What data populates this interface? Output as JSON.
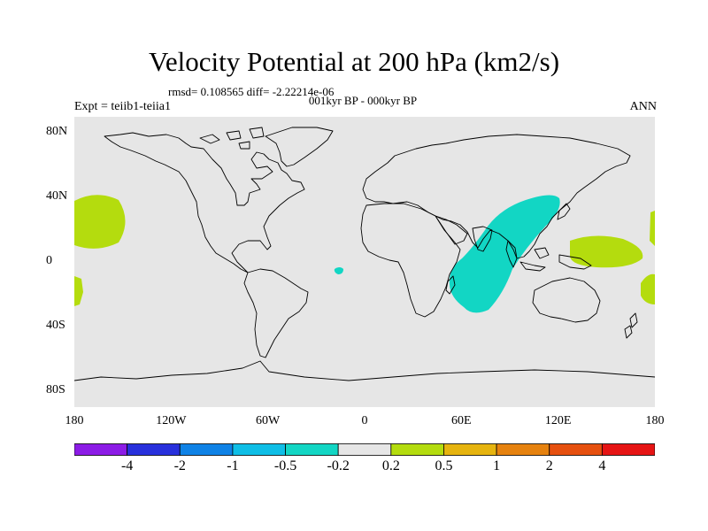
{
  "header": {
    "title": "Velocity Potential at 200 hPa (km2/s)",
    "stats": "rmsd= 0.108565 diff= -2.22214e-06",
    "period": "001kyr BP - 000kyr BP",
    "experiment": "Expt = teiib1-teiia1",
    "season": "ANN"
  },
  "map": {
    "projection": "cylindrical equidistant",
    "lon_range": [
      -180,
      180
    ],
    "lat_range": [
      -90,
      90
    ],
    "background_color": "#e6e6e6",
    "coastline_color": "#000000",
    "x_ticks": [
      {
        "lon": -180,
        "label": "180"
      },
      {
        "lon": -120,
        "label": "120W"
      },
      {
        "lon": -60,
        "label": "60W"
      },
      {
        "lon": 0,
        "label": "0"
      },
      {
        "lon": 60,
        "label": "60E"
      },
      {
        "lon": 120,
        "label": "120E"
      },
      {
        "lon": 180,
        "label": "180"
      }
    ],
    "y_ticks": [
      {
        "lat": 80,
        "label": "80N"
      },
      {
        "lat": 40,
        "label": "40N"
      },
      {
        "lat": 0,
        "label": "0"
      },
      {
        "lat": -40,
        "label": "40S"
      },
      {
        "lat": -80,
        "label": "80S"
      }
    ],
    "anomaly_regions": [
      {
        "name": "indian-ocean-negative",
        "range": "-0.5 to -0.2",
        "color": "#12d6c4"
      },
      {
        "name": "atlantic-small-negative",
        "range": "-0.5 to -0.2",
        "color": "#12d6c4"
      },
      {
        "name": "west-pacific-positive",
        "range": "0.2 to 0.5",
        "color": "#b4dc0e"
      },
      {
        "name": "central-pacific-positive",
        "range": "0.2 to 0.5",
        "color": "#b4dc0e"
      },
      {
        "name": "south-pacific-west-positive",
        "range": "0.2 to 0.5",
        "color": "#b4dc0e"
      },
      {
        "name": "east-edge-positive-north",
        "range": "0.2 to 0.5",
        "color": "#b4dc0e"
      },
      {
        "name": "east-edge-positive-south",
        "range": "0.2 to 0.5",
        "color": "#b4dc0e"
      }
    ]
  },
  "colorbar": {
    "colors": [
      "#8c1ce6",
      "#2830dc",
      "#0f82e6",
      "#0fbee6",
      "#12d6c4",
      "#e6e6e6",
      "#b4dc0e",
      "#e6b40f",
      "#e6820f",
      "#e6500f",
      "#e61414"
    ],
    "labels": [
      "-4",
      "-2",
      "-1",
      "-0.5",
      "-0.2",
      "0.2",
      "0.5",
      "1",
      "2",
      "4"
    ]
  }
}
